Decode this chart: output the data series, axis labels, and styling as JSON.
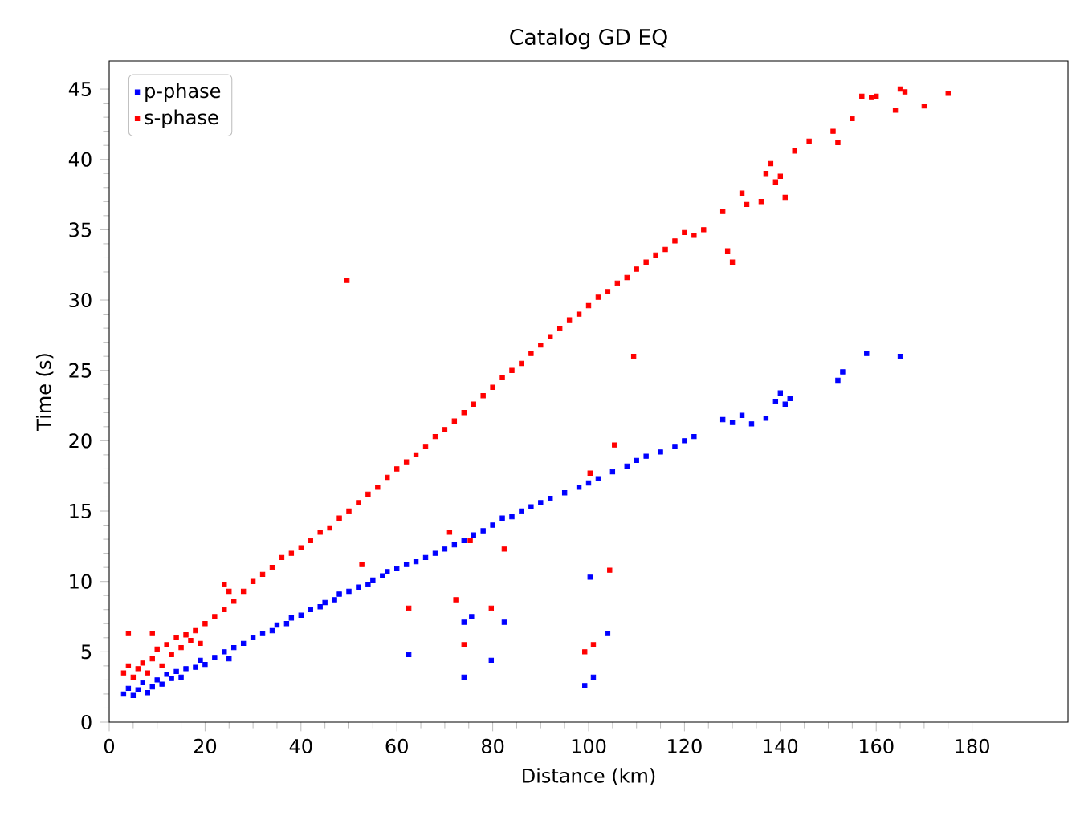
{
  "chart_data": {
    "type": "scatter",
    "title": "Catalog GD EQ",
    "xlabel": "Distance (km)",
    "ylabel": "Time (s)",
    "xlim": [
      0,
      200
    ],
    "ylim": [
      0,
      47
    ],
    "xticks": [
      0,
      20,
      40,
      60,
      80,
      100,
      120,
      140,
      160,
      180
    ],
    "yticks": [
      0,
      5,
      10,
      15,
      20,
      25,
      30,
      35,
      40,
      45
    ],
    "grid": false,
    "legend": "top left",
    "marker": "square",
    "series": [
      {
        "name": "p-phase",
        "color": "#0000ff",
        "x": [
          3,
          4,
          5,
          6,
          7,
          8,
          9,
          10,
          11,
          12,
          13,
          14,
          15,
          16,
          18,
          19,
          20,
          22,
          24,
          25,
          26,
          28,
          30,
          32,
          34,
          35,
          37,
          38,
          40,
          42,
          44,
          45,
          47,
          48,
          50,
          52,
          54,
          55,
          57,
          58,
          60,
          62,
          64,
          66,
          68,
          70,
          72,
          74,
          76,
          78,
          80,
          82,
          84,
          86,
          88,
          90,
          92,
          95,
          98,
          100,
          102,
          105,
          108,
          110,
          112,
          115,
          118,
          120,
          122,
          128,
          130,
          132,
          134,
          137,
          139,
          140,
          141,
          142,
          152,
          153,
          158,
          165,
          62.5,
          74,
          74,
          75.6,
          79.7,
          82.4,
          100.3,
          99.2,
          101,
          104
        ],
        "values": [
          2.0,
          2.4,
          1.9,
          2.3,
          2.8,
          2.1,
          2.5,
          3.0,
          2.7,
          3.4,
          3.1,
          3.6,
          3.2,
          3.8,
          3.9,
          4.4,
          4.1,
          4.6,
          5.0,
          4.5,
          5.3,
          5.6,
          6.0,
          6.3,
          6.5,
          6.9,
          7.0,
          7.4,
          7.6,
          8.0,
          8.2,
          8.5,
          8.7,
          9.1,
          9.3,
          9.6,
          9.8,
          10.1,
          10.4,
          10.7,
          10.9,
          11.2,
          11.4,
          11.7,
          12.0,
          12.3,
          12.6,
          12.9,
          13.3,
          13.6,
          14.0,
          14.5,
          14.6,
          15.0,
          15.3,
          15.6,
          15.9,
          16.3,
          16.7,
          17.0,
          17.3,
          17.8,
          18.2,
          18.6,
          18.9,
          19.2,
          19.6,
          20.0,
          20.3,
          21.5,
          21.3,
          21.8,
          21.2,
          21.6,
          22.8,
          23.4,
          22.6,
          23.0,
          24.3,
          24.9,
          26.2,
          26.0,
          4.8,
          3.2,
          7.1,
          7.5,
          4.4,
          7.1,
          10.3,
          2.6,
          3.2,
          6.3
        ]
      },
      {
        "name": "s-phase",
        "color": "#ff0000",
        "x": [
          3,
          4,
          5,
          6,
          7,
          8,
          9,
          10,
          11,
          12,
          13,
          14,
          15,
          16,
          17,
          18,
          19,
          20,
          22,
          24,
          25,
          26,
          28,
          30,
          32,
          34,
          36,
          38,
          40,
          42,
          44,
          46,
          48,
          50,
          52,
          54,
          56,
          58,
          60,
          62,
          64,
          66,
          68,
          70,
          72,
          74,
          76,
          78,
          80,
          82,
          84,
          86,
          88,
          90,
          92,
          94,
          96,
          98,
          100,
          102,
          104,
          106,
          108,
          110,
          112,
          114,
          116,
          118,
          120,
          122,
          124,
          128,
          129,
          130,
          132,
          133,
          136,
          137,
          138,
          139,
          140,
          141,
          143,
          146,
          151,
          152,
          155,
          157,
          159,
          160,
          164,
          165,
          166,
          170,
          175,
          4,
          9,
          24,
          49.6,
          52.7,
          62.5,
          71,
          72.3,
          75.3,
          74,
          79.7,
          82.4,
          105.4,
          100.3,
          109.4,
          104.4,
          99.2,
          101
        ],
        "values": [
          3.5,
          4.0,
          3.2,
          3.8,
          4.2,
          3.5,
          4.5,
          5.2,
          4.0,
          5.5,
          4.8,
          6.0,
          5.3,
          6.2,
          5.8,
          6.5,
          5.6,
          7.0,
          7.5,
          8.0,
          9.3,
          8.6,
          9.3,
          10.0,
          10.5,
          11.0,
          11.7,
          12.0,
          12.4,
          12.9,
          13.5,
          13.8,
          14.5,
          15.0,
          15.6,
          16.2,
          16.7,
          17.4,
          18.0,
          18.5,
          19.0,
          19.6,
          20.3,
          20.8,
          21.4,
          22.0,
          22.6,
          23.2,
          23.8,
          24.5,
          25.0,
          25.5,
          26.2,
          26.8,
          27.4,
          28.0,
          28.6,
          29.0,
          29.6,
          30.2,
          30.6,
          31.2,
          31.6,
          32.2,
          32.7,
          33.2,
          33.6,
          34.2,
          34.8,
          34.6,
          35.0,
          36.3,
          33.5,
          32.7,
          37.6,
          36.8,
          37.0,
          39.0,
          39.7,
          38.4,
          38.8,
          37.3,
          40.6,
          41.3,
          42.0,
          41.2,
          42.9,
          44.5,
          44.4,
          44.5,
          43.5,
          45.0,
          44.8,
          43.8,
          44.7,
          6.3,
          6.3,
          9.8,
          31.4,
          11.2,
          8.1,
          13.5,
          8.7,
          12.9,
          5.5,
          8.1,
          12.3,
          19.7,
          17.7,
          26.0,
          10.8,
          5.0,
          5.5
        ]
      }
    ]
  }
}
